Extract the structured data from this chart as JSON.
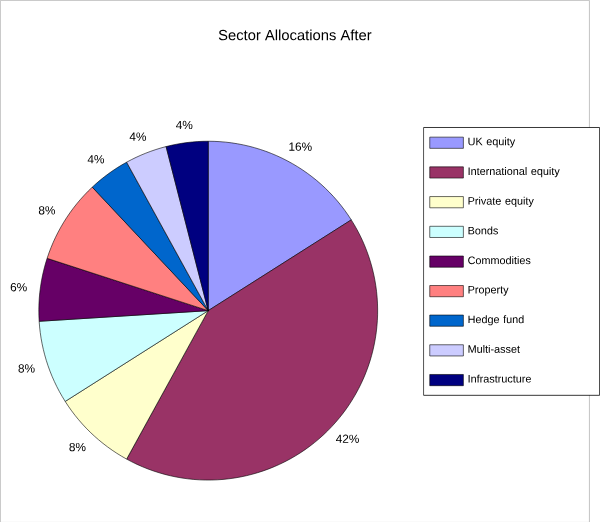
{
  "chart_data": {
    "type": "pie",
    "title": "Sector Allocations After",
    "categories": [
      "UK equity",
      "International equity",
      "Private equity",
      "Bonds",
      "Commodities",
      "Property",
      "Hedge fund",
      "Multi-asset",
      "Infrastructure"
    ],
    "values": [
      16,
      42,
      8,
      8,
      6,
      8,
      4,
      4,
      4
    ],
    "value_labels": [
      "16%",
      "42%",
      "8%",
      "8%",
      "6%",
      "8%",
      "4%",
      "4%",
      "4%"
    ],
    "colors": [
      "#9999ff",
      "#993366",
      "#ffffcc",
      "#ccffff",
      "#660066",
      "#ff8080",
      "#0066cc",
      "#ccccff",
      "#000080"
    ],
    "legend": "right"
  }
}
